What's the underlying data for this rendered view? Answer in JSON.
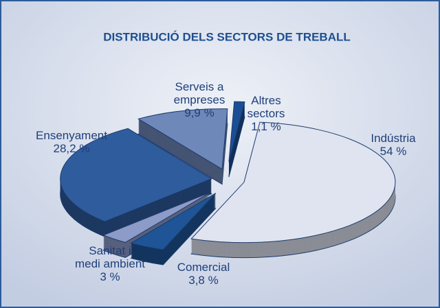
{
  "chart_data": {
    "type": "pie",
    "title": "DISTRIBUCIÓ DELS SECTORS DE TREBALL",
    "categories": [
      "Indústria",
      "Comercial",
      "Sanitat i\nmedi ambient",
      "Ensenyament",
      "Serveis a\nempreses",
      "Altres\nsectors"
    ],
    "values": [
      54,
      3.8,
      3,
      28.2,
      9.9,
      1.1
    ],
    "value_labels": [
      "54 %",
      "3,8 %",
      "3 %",
      "28,2 %",
      "9,9 %",
      "1,1 %"
    ],
    "colors": [
      "#dfe4f0",
      "#1f5597",
      "#8c9bc8",
      "#2f5c9c",
      "#6f88ba",
      "#1b4f94"
    ]
  }
}
